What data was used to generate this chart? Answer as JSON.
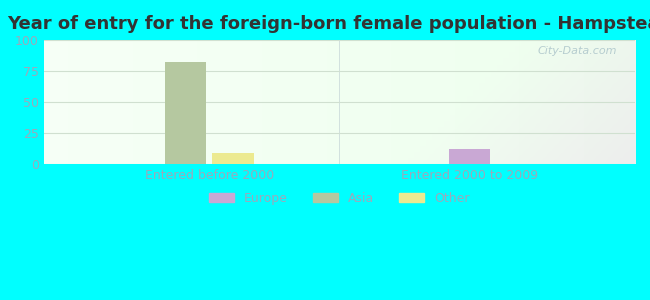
{
  "title": "Year of entry for the foreign-born female population - Hampstead",
  "background_color": "#00FFFF",
  "plot_bg_gradient": true,
  "groups": [
    "Entered before 2000",
    "Entered 2000 to 2009"
  ],
  "series": [
    {
      "name": "Europe",
      "color": "#c9a8d4",
      "values": [
        0,
        12
      ]
    },
    {
      "name": "Asia",
      "color": "#b5c8a0",
      "values": [
        82,
        0
      ]
    },
    {
      "name": "Other",
      "color": "#ecea90",
      "values": [
        9,
        0
      ]
    }
  ],
  "ylim": [
    0,
    100
  ],
  "yticks": [
    0,
    25,
    50,
    75,
    100
  ],
  "bar_width": 0.07,
  "group_positions": [
    0.28,
    0.72
  ],
  "title_fontsize": 13,
  "tick_label_fontsize": 9,
  "axis_label_color": "#99aabb",
  "grid_color": "#d0e0d0",
  "watermark": "City-Data.com"
}
